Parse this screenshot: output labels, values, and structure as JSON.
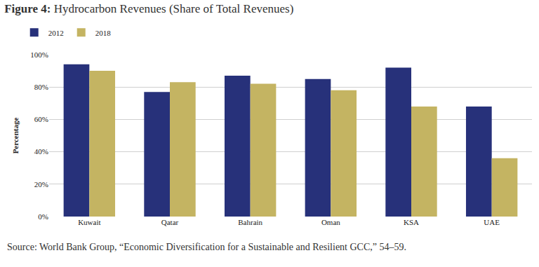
{
  "chart_data": {
    "type": "bar",
    "title": "Figure 4: Hydrocarbon Revenues (Share of Total Revenues)",
    "y_label": "Percentage",
    "source": "Source: World Bank Group, “Economic Diversification for a Sustainable and Resilient GCC,” 54–59.",
    "categories": [
      "Kuwait",
      "Qatar",
      "Bahrain",
      "Oman",
      "KSA",
      "UAE"
    ],
    "series": [
      {
        "name": "2012",
        "color": "#27317a",
        "values": [
          94,
          77,
          87,
          85,
          92,
          68
        ]
      },
      {
        "name": "2018",
        "color": "#c4b462",
        "values": [
          90,
          83,
          82,
          78,
          68,
          36
        ]
      }
    ],
    "ylim": [
      0,
      100
    ],
    "yticks": [
      {
        "value": 0,
        "label": "0%"
      },
      {
        "value": 20,
        "label": "20%"
      },
      {
        "value": 40,
        "label": "40%"
      },
      {
        "value": 60,
        "label": "60%"
      },
      {
        "value": 80,
        "label": "80%"
      },
      {
        "value": 100,
        "label": "100%"
      }
    ],
    "grid": true,
    "legend": "top left"
  }
}
